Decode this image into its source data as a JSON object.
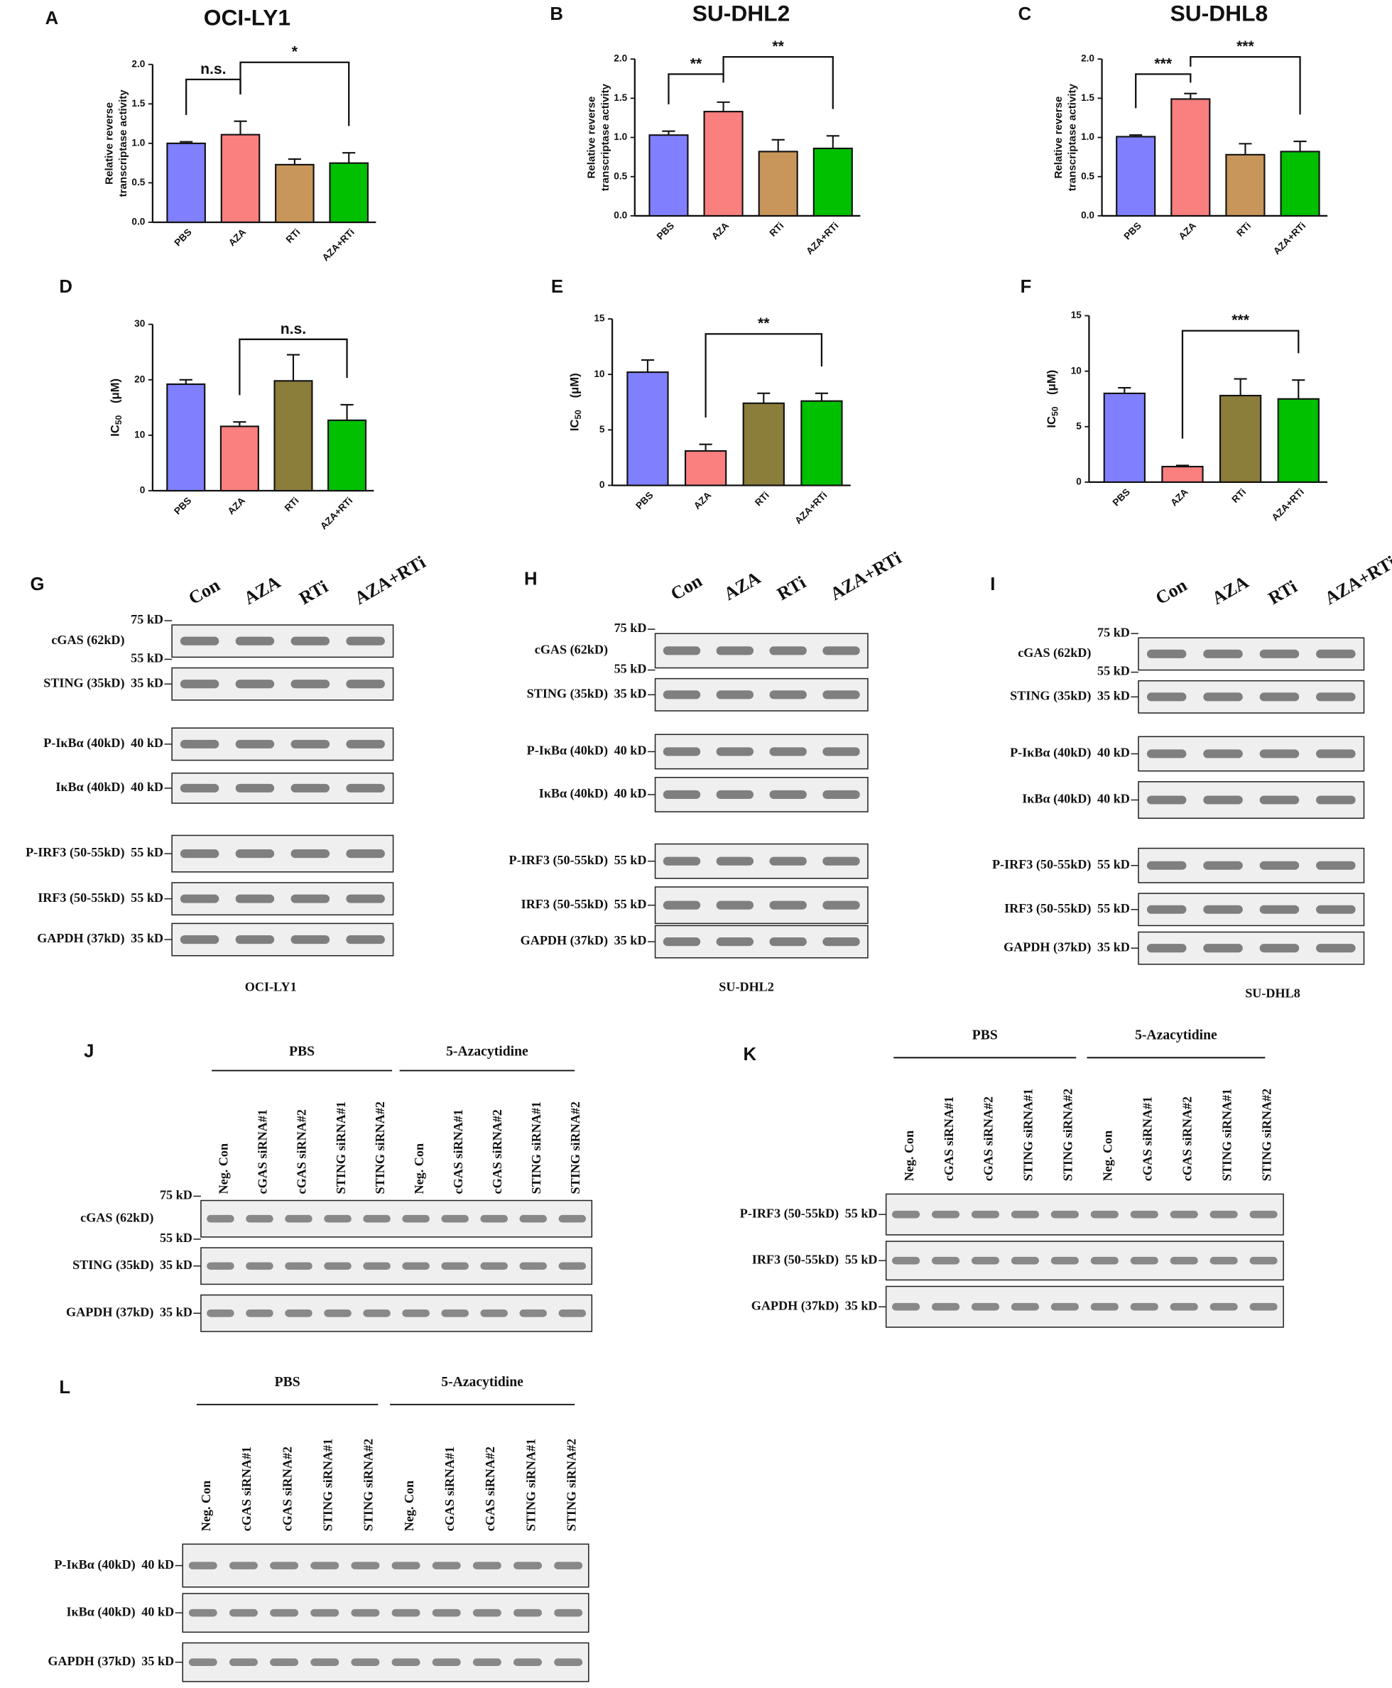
{
  "chart_data": [
    {
      "panel": "A",
      "type": "bar",
      "title": "OCI-LY1",
      "ylabel": [
        "Relative reverse",
        "transcriptase activity"
      ],
      "categories": [
        "PBS",
        "AZA",
        "RTi",
        "AZA+RTi"
      ],
      "values": [
        1.0,
        1.11,
        0.73,
        0.75
      ],
      "errors": [
        0.02,
        0.17,
        0.07,
        0.13
      ],
      "colors": [
        "#8080ff",
        "#fa7f7f",
        "#c8965a",
        "#00c000"
      ],
      "ylim": [
        0,
        2
      ],
      "yticks": [
        {
          "value": 0,
          "label": "0.0"
        },
        0.5,
        {
          "value": 1,
          "label": "1.0"
        },
        1.5,
        {
          "value": 2,
          "label": "2.0"
        }
      ],
      "comparisons": [
        {
          "label": "n.s.",
          "between": [
            "PBS",
            "AZA"
          ]
        },
        {
          "label": "*",
          "between": [
            "AZA",
            "AZA+RTi"
          ]
        }
      ]
    },
    {
      "panel": "B",
      "type": "bar",
      "title": "SU-DHL2",
      "ylabel": [
        "Relative reverse",
        "transcriptase activity"
      ],
      "categories": [
        "PBS",
        "AZA",
        "RTi",
        "AZA+RTi"
      ],
      "values": [
        1.03,
        1.33,
        0.82,
        0.86
      ],
      "errors": [
        0.05,
        0.12,
        0.15,
        0.16
      ],
      "colors": [
        "#8080ff",
        "#fa7f7f",
        "#c8965a",
        "#00c000"
      ],
      "ylim": [
        0,
        2
      ],
      "yticks": [
        {
          "value": 0,
          "label": "0.0"
        },
        0.5,
        {
          "value": 1,
          "label": "1.0"
        },
        1.5,
        {
          "value": 2,
          "label": "2.0"
        }
      ],
      "comparisons": [
        {
          "label": "**",
          "between": [
            "PBS",
            "AZA"
          ]
        },
        {
          "label": "**",
          "between": [
            "AZA",
            "AZA+RTi"
          ]
        }
      ]
    },
    {
      "panel": "C",
      "type": "bar",
      "title": "SU-DHL8",
      "ylabel": [
        "Relative reverse",
        "transcriptase activity"
      ],
      "categories": [
        "PBS",
        "AZA",
        "RTi",
        "AZA+RTi"
      ],
      "values": [
        1.01,
        1.49,
        0.78,
        0.82
      ],
      "errors": [
        0.02,
        0.07,
        0.14,
        0.13
      ],
      "colors": [
        "#8080ff",
        "#fa7f7f",
        "#c8965a",
        "#00c000"
      ],
      "ylim": [
        0,
        2
      ],
      "yticks": [
        {
          "value": 0,
          "label": "0.0"
        },
        0.5,
        {
          "value": 1,
          "label": "1.0"
        },
        1.5,
        {
          "value": 2,
          "label": "2.0"
        }
      ],
      "comparisons": [
        {
          "label": "***",
          "between": [
            "PBS",
            "AZA"
          ]
        },
        {
          "label": "***",
          "between": [
            "AZA",
            "AZA+RTi"
          ]
        }
      ]
    },
    {
      "panel": "D",
      "type": "bar",
      "ylabel": {
        "text": "IC",
        "sub": "50",
        "unit": "(μM)"
      },
      "categories": [
        "PBS",
        "AZA",
        "RTi",
        "AZA+RTi"
      ],
      "values": [
        19.2,
        11.6,
        19.8,
        12.7
      ],
      "errors": [
        0.8,
        0.8,
        4.7,
        2.8
      ],
      "colors": [
        "#8080ff",
        "#fa7f7f",
        "#8b7d3a",
        "#00c000"
      ],
      "ylim": [
        0,
        30
      ],
      "yticks": [
        0,
        10,
        20,
        30
      ],
      "comparisons": [
        {
          "label": "n.s.",
          "between": [
            "AZA",
            "AZA+RTi"
          ]
        }
      ]
    },
    {
      "panel": "E",
      "type": "bar",
      "ylabel": {
        "text": "IC",
        "sub": "50",
        "unit": "(μM)"
      },
      "categories": [
        "PBS",
        "AZA",
        "RTi",
        "AZA+RTi"
      ],
      "values": [
        10.2,
        3.1,
        7.4,
        7.6
      ],
      "errors": [
        1.1,
        0.6,
        0.9,
        0.7
      ],
      "colors": [
        "#8080ff",
        "#fa7f7f",
        "#8b7d3a",
        "#00c000"
      ],
      "ylim": [
        0,
        15
      ],
      "yticks": [
        0,
        5,
        10,
        15
      ],
      "comparisons": [
        {
          "label": "**",
          "between": [
            "AZA",
            "AZA+RTi"
          ]
        }
      ]
    },
    {
      "panel": "F",
      "type": "bar",
      "ylabel": {
        "text": "IC",
        "sub": "50",
        "unit": "(μM)"
      },
      "categories": [
        "PBS",
        "AZA",
        "RTi",
        "AZA+RTi"
      ],
      "values": [
        8.0,
        1.4,
        7.8,
        7.5
      ],
      "errors": [
        0.5,
        0.1,
        1.5,
        1.7
      ],
      "colors": [
        "#8080ff",
        "#fa7f7f",
        "#8b7d3a",
        "#00c000"
      ],
      "ylim": [
        0,
        15
      ],
      "yticks": [
        0,
        5,
        10,
        15
      ],
      "comparisons": [
        {
          "label": "***",
          "between": [
            "AZA",
            "AZA+RTi"
          ]
        }
      ]
    }
  ],
  "blots": [
    {
      "panel": "G",
      "lanes": [
        "Con",
        "AZA",
        "RTi",
        "AZA+RTi"
      ],
      "caption": "OCI-LY1",
      "rows": [
        {
          "label": "cGAS (62kD)",
          "markers": [
            "75 kD",
            "55 kD"
          ]
        },
        {
          "label": "STING (35kD)",
          "markers": [
            "35 kD"
          ]
        },
        {
          "label": "P-IκBα (40kD)",
          "markers": [
            "40 kD"
          ]
        },
        {
          "label": "IκBα (40kD)",
          "markers": [
            "40 kD"
          ]
        },
        {
          "label": "P-IRF3 (50-55kD)",
          "markers": [
            "55 kD"
          ]
        },
        {
          "label": "IRF3 (50-55kD)",
          "markers": [
            "55 kD"
          ]
        },
        {
          "label": "GAPDH (37kD)",
          "markers": [
            "35 kD"
          ]
        }
      ]
    },
    {
      "panel": "H",
      "lanes": [
        "Con",
        "AZA",
        "RTi",
        "AZA+RTi"
      ],
      "caption": "SU-DHL2",
      "rows": [
        {
          "label": "cGAS (62kD)",
          "markers": [
            "75 kD",
            "55 kD"
          ]
        },
        {
          "label": "STING (35kD)",
          "markers": [
            "35 kD"
          ]
        },
        {
          "label": "P-IκBα (40kD)",
          "markers": [
            "40 kD"
          ]
        },
        {
          "label": "IκBα (40kD)",
          "markers": [
            "40 kD"
          ]
        },
        {
          "label": "P-IRF3 (50-55kD)",
          "markers": [
            "55 kD"
          ]
        },
        {
          "label": "IRF3 (50-55kD)",
          "markers": [
            "55 kD"
          ]
        },
        {
          "label": "GAPDH (37kD)",
          "markers": [
            "35 kD"
          ]
        }
      ]
    },
    {
      "panel": "I",
      "lanes": [
        "Con",
        "AZA",
        "RTi",
        "AZA+RTi"
      ],
      "caption": "SU-DHL8",
      "rows": [
        {
          "label": "cGAS (62kD)",
          "markers": [
            "75 kD",
            "55 kD"
          ]
        },
        {
          "label": "STING (35kD)",
          "markers": [
            "35 kD"
          ]
        },
        {
          "label": "P-IκBα (40kD)",
          "markers": [
            "40 kD"
          ]
        },
        {
          "label": "IκBα (40kD)",
          "markers": [
            "40 kD"
          ]
        },
        {
          "label": "P-IRF3 (50-55kD)",
          "markers": [
            "55 kD"
          ]
        },
        {
          "label": "IRF3 (50-55kD)",
          "markers": [
            "55 kD"
          ]
        },
        {
          "label": "GAPDH (37kD)",
          "markers": [
            "35 kD"
          ]
        }
      ]
    }
  ],
  "knockdown_blots": [
    {
      "panel": "J",
      "groups": [
        "PBS",
        "5-Azacytidine"
      ],
      "lanes": [
        "Neg. Con",
        "cGAS siRNA#1",
        "cGAS siRNA#2",
        "STING siRNA#1",
        "STING siRNA#2",
        "Neg. Con",
        "cGAS siRNA#1",
        "cGAS siRNA#2",
        "STING siRNA#1",
        "STING siRNA#2"
      ],
      "rows": [
        {
          "label": "cGAS (62kD)",
          "markers": [
            "75 kD",
            "55 kD"
          ]
        },
        {
          "label": "STING (35kD)",
          "markers": [
            "35 kD"
          ]
        },
        {
          "label": "GAPDH (37kD)",
          "markers": [
            "35 kD"
          ]
        }
      ]
    },
    {
      "panel": "K",
      "groups": [
        "PBS",
        "5-Azacytidine"
      ],
      "lanes": [
        "Neg. Con",
        "cGAS siRNA#1",
        "cGAS siRNA#2",
        "STING siRNA#1",
        "STING siRNA#2",
        "Neg. Con",
        "cGAS siRNA#1",
        "cGAS siRNA#2",
        "STING siRNA#1",
        "STING siRNA#2"
      ],
      "rows": [
        {
          "label": "P-IRF3 (50-55kD)",
          "markers": [
            "55 kD"
          ]
        },
        {
          "label": "IRF3 (50-55kD)",
          "markers": [
            "55 kD"
          ]
        },
        {
          "label": "GAPDH (37kD)",
          "markers": [
            "35 kD"
          ]
        }
      ]
    },
    {
      "panel": "L",
      "groups": [
        "PBS",
        "5-Azacytidine"
      ],
      "lanes": [
        "Neg. Con",
        "cGAS siRNA#1",
        "cGAS siRNA#2",
        "STING siRNA#1",
        "STING siRNA#2",
        "Neg. Con",
        "cGAS siRNA#1",
        "cGAS siRNA#2",
        "STING siRNA#1",
        "STING siRNA#2"
      ],
      "rows": [
        {
          "label": "P-IκBα (40kD)",
          "markers": [
            "40 kD"
          ]
        },
        {
          "label": "IκBα (40kD)",
          "markers": [
            "40 kD"
          ]
        },
        {
          "label": "GAPDH (37kD)",
          "markers": [
            "35 kD"
          ]
        }
      ]
    }
  ]
}
